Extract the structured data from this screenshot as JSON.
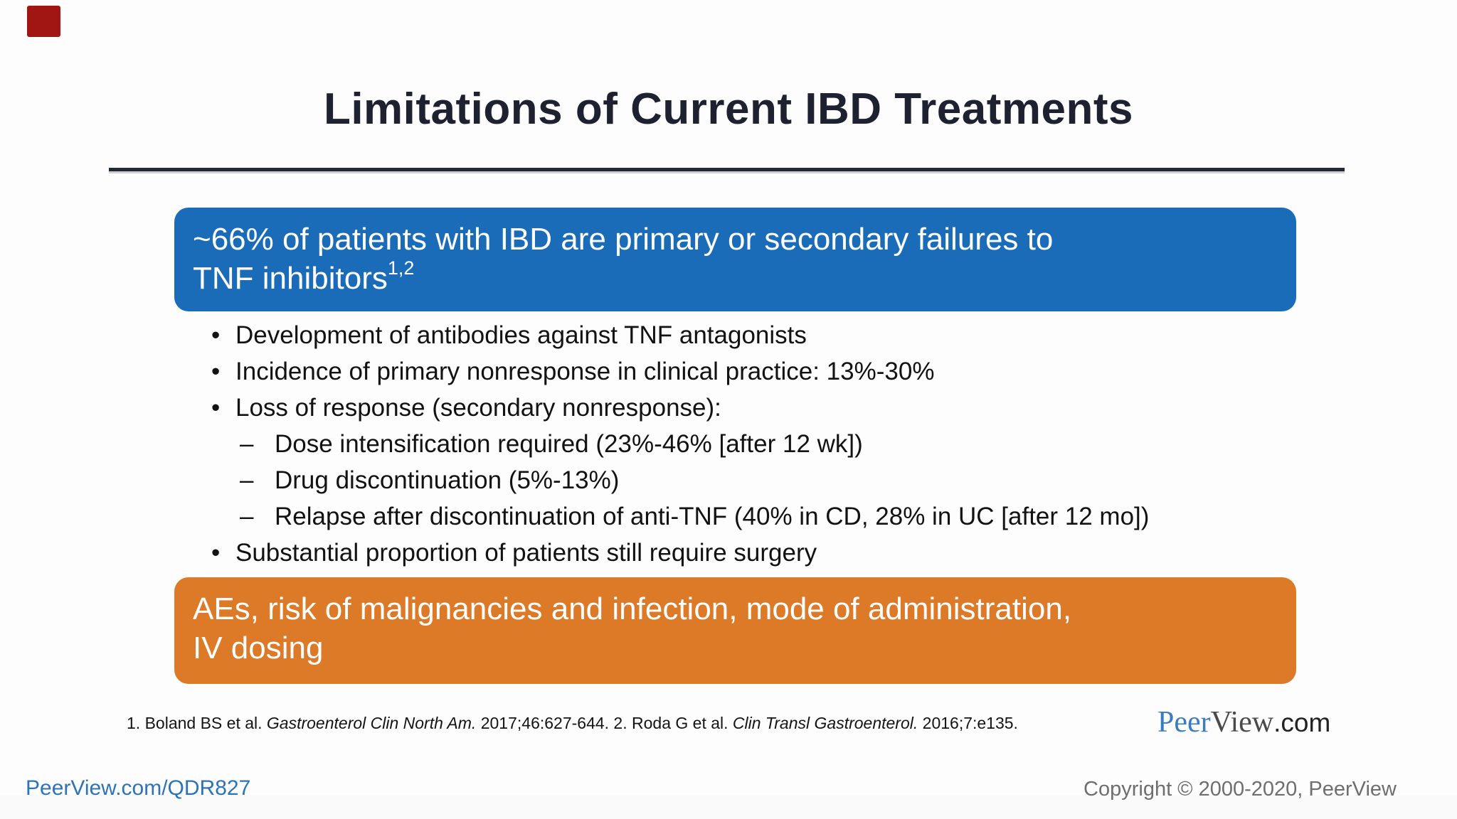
{
  "colors": {
    "title-color": "#1e2130",
    "divider-color": "#232838",
    "blue-box-bg": "#1a6cb9",
    "orange-box-bg": "#dd7a27",
    "box-text-color": "#ffffff",
    "bullet-text-color": "#121212",
    "link-color": "#2d73b9",
    "copyright-color": "#6e6e6e",
    "logo-peer-color": "#3b7bbf",
    "logo-view-color": "#4a4a4a",
    "logo-com-color": "#222222",
    "marker-red": "#a11613",
    "background": "#fdfdfe"
  },
  "slide": {
    "title": "Limitations of Current IBD Treatments",
    "blue_box": {
      "line1": "~66% of patients with IBD are primary or secondary failures to",
      "line2": "TNF inhibitors",
      "superscript": "1,2"
    },
    "bullet_marker": "•",
    "dash_marker": "–",
    "bullets": [
      {
        "level": 1,
        "text": "Development of antibodies against TNF antagonists"
      },
      {
        "level": 1,
        "text": "Incidence of primary nonresponse in clinical practice: 13%-30%"
      },
      {
        "level": 1,
        "text": "Loss of response (secondary nonresponse):"
      },
      {
        "level": 2,
        "text": "Dose intensification required (23%-46% [after 12 wk])"
      },
      {
        "level": 2,
        "text": "Drug discontinuation (5%-13%)"
      },
      {
        "level": 2,
        "text": "Relapse after discontinuation of anti-TNF (40% in CD, 28% in UC [after 12 mo])"
      },
      {
        "level": 1,
        "text": "Substantial proportion of patients still require surgery"
      }
    ],
    "orange_box": {
      "line1": "AEs, risk of malignancies and infection, mode of administration,",
      "line2": "IV dosing"
    },
    "footnote": {
      "segments": [
        {
          "text": "1. Boland BS et al. ",
          "italic": false
        },
        {
          "text": "Gastroenterol Clin North Am.",
          "italic": true
        },
        {
          "text": " 2017;46:627-644. 2. Roda G et al. ",
          "italic": false
        },
        {
          "text": "Clin Transl Gastroenterol.",
          "italic": true
        },
        {
          "text": " 2016;7:e135.",
          "italic": false
        }
      ]
    }
  },
  "branding": {
    "logo": {
      "peer": "Peer",
      "view": "View",
      "com": ".com"
    }
  },
  "footer": {
    "link": "PeerView.com/QDR827",
    "copyright": "Copyright © 2000-2020, PeerView"
  }
}
